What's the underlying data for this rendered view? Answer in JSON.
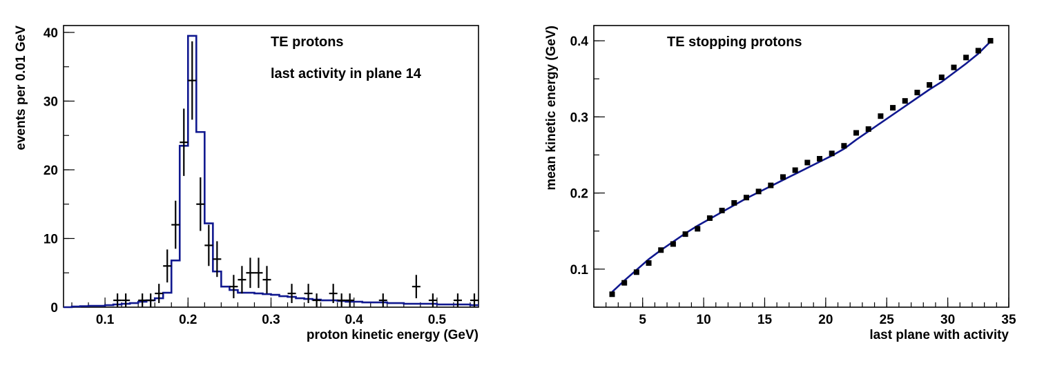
{
  "chart_data": [
    {
      "type": "line",
      "xlabel": "proton kinetic energy (GeV)",
      "ylabel": "events per 0.01 GeV",
      "xlim": [
        0.05,
        0.55
      ],
      "ylim": [
        0,
        41
      ],
      "x_ticks": [
        0.1,
        0.2,
        0.3,
        0.4,
        0.5
      ],
      "x_tick_labels": [
        "0.1",
        "0.2",
        "0.3",
        "0.4",
        "0.5"
      ],
      "y_ticks": [
        0,
        10,
        20,
        30,
        40
      ],
      "y_tick_labels": [
        "0",
        "10",
        "20",
        "30",
        "40"
      ],
      "annotations": [
        "TE protons",
        "last activity in plane 14"
      ],
      "grid": false,
      "series": [
        {
          "style": "histogram",
          "color": "#10188f",
          "bin_edges": [
            0.05,
            0.06,
            0.07,
            0.08,
            0.09,
            0.1,
            0.11,
            0.12,
            0.13,
            0.14,
            0.15,
            0.16,
            0.17,
            0.18,
            0.19,
            0.2,
            0.21,
            0.22,
            0.23,
            0.24,
            0.25,
            0.26,
            0.27,
            0.28,
            0.29,
            0.3,
            0.31,
            0.32,
            0.33,
            0.34,
            0.35,
            0.36,
            0.37,
            0.38,
            0.39,
            0.4,
            0.41,
            0.42,
            0.43,
            0.44,
            0.45,
            0.46,
            0.47,
            0.48,
            0.49,
            0.5,
            0.51,
            0.52,
            0.53,
            0.54,
            0.55
          ],
          "values": [
            0,
            0.1,
            0.15,
            0.2,
            0.2,
            0.3,
            0.4,
            0.5,
            0.6,
            0.8,
            1.0,
            1.3,
            2.1,
            6.8,
            23.5,
            39.5,
            25.5,
            12.2,
            5.2,
            3.0,
            2.5,
            2.1,
            2.1,
            2.0,
            1.9,
            1.8,
            1.6,
            1.5,
            1.3,
            1.2,
            1.1,
            1.0,
            1.0,
            0.9,
            0.8,
            0.8,
            0.7,
            0.7,
            0.7,
            0.6,
            0.6,
            0.5,
            0.5,
            0.5,
            0.5,
            0.4,
            0.4,
            0.4,
            0.4,
            0.3
          ]
        },
        {
          "style": "points-with-errors",
          "color": "#000000",
          "x": [
            0.115,
            0.125,
            0.145,
            0.155,
            0.165,
            0.175,
            0.185,
            0.195,
            0.205,
            0.215,
            0.225,
            0.235,
            0.255,
            0.265,
            0.275,
            0.285,
            0.295,
            0.325,
            0.345,
            0.355,
            0.375,
            0.385,
            0.395,
            0.435,
            0.475,
            0.495,
            0.525,
            0.545
          ],
          "y": [
            1,
            1,
            1,
            1,
            2,
            6,
            12,
            24,
            33,
            15,
            9,
            7,
            3,
            4,
            5,
            5,
            4,
            2,
            2,
            1,
            2,
            1,
            1,
            1,
            3,
            1,
            1,
            1
          ],
          "yerr": [
            1,
            1,
            1,
            1,
            1.4,
            2.4,
            3.5,
            4.9,
            5.7,
            3.9,
            3.0,
            2.6,
            1.7,
            2.0,
            2.2,
            2.2,
            2.0,
            1.4,
            1.4,
            1,
            1.4,
            1,
            1,
            1,
            1.7,
            1,
            1,
            1
          ],
          "xerr": 0.005
        }
      ]
    },
    {
      "type": "scatter",
      "xlabel": "last plane with activity",
      "ylabel": "mean kinetic energy (GeV)",
      "xlim": [
        1,
        35
      ],
      "ylim": [
        0.05,
        0.42
      ],
      "x_ticks": [
        5,
        10,
        15,
        20,
        25,
        30,
        35
      ],
      "x_tick_labels": [
        "5",
        "10",
        "15",
        "20",
        "25",
        "30",
        "35"
      ],
      "y_ticks": [
        0.1,
        0.2,
        0.3,
        0.4
      ],
      "y_tick_labels": [
        "0.1",
        "0.2",
        "0.3",
        "0.4"
      ],
      "annotations": [
        "TE stopping protons"
      ],
      "grid": false,
      "series": [
        {
          "style": "line",
          "color": "#10188f",
          "x": [
            2.5,
            3.5,
            4.5,
            5.5,
            6.5,
            7.5,
            8.5,
            9.5,
            10.5,
            11.5,
            12.5,
            13.5,
            14.5,
            15.5,
            16.5,
            17.5,
            18.5,
            19.5,
            20.5,
            21.5,
            22.5,
            23.5,
            24.5,
            25.5,
            26.5,
            27.5,
            28.5,
            29.5,
            30.5,
            31.5,
            32.5,
            33.5
          ],
          "y": [
            0.07,
            0.085,
            0.099,
            0.113,
            0.125,
            0.136,
            0.147,
            0.157,
            0.166,
            0.175,
            0.184,
            0.193,
            0.201,
            0.209,
            0.217,
            0.225,
            0.233,
            0.241,
            0.249,
            0.258,
            0.27,
            0.281,
            0.292,
            0.303,
            0.314,
            0.325,
            0.336,
            0.346,
            0.358,
            0.37,
            0.383,
            0.399
          ]
        },
        {
          "style": "markers",
          "color": "#000000",
          "x": [
            2.5,
            3.5,
            4.5,
            5.5,
            6.5,
            7.5,
            8.5,
            9.5,
            10.5,
            11.5,
            12.5,
            13.5,
            14.5,
            15.5,
            16.5,
            17.5,
            18.5,
            19.5,
            20.5,
            21.5,
            22.5,
            23.5,
            24.5,
            25.5,
            26.5,
            27.5,
            28.5,
            29.5,
            30.5,
            31.5,
            32.5,
            33.5
          ],
          "y": [
            0.067,
            0.082,
            0.096,
            0.108,
            0.125,
            0.133,
            0.146,
            0.153,
            0.167,
            0.177,
            0.187,
            0.194,
            0.202,
            0.21,
            0.221,
            0.23,
            0.24,
            0.245,
            0.252,
            0.262,
            0.279,
            0.284,
            0.301,
            0.312,
            0.321,
            0.332,
            0.342,
            0.352,
            0.365,
            0.378,
            0.387,
            0.4
          ]
        }
      ]
    }
  ]
}
